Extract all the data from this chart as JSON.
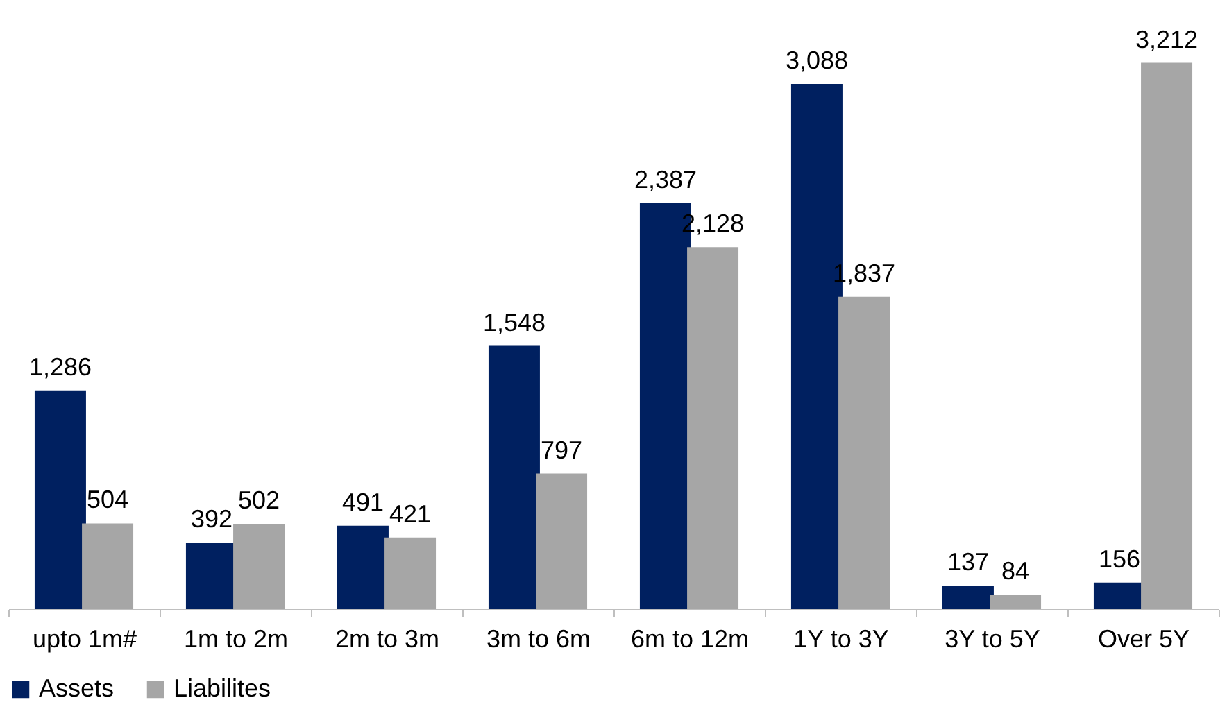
{
  "chart_data": {
    "type": "bar",
    "categories": [
      "upto 1m#",
      "1m to 2m",
      "2m to 3m",
      "3m to 6m",
      "6m to 12m",
      "1Y to 3Y",
      "3Y to 5Y",
      "Over 5Y"
    ],
    "series": [
      {
        "name": "Assets",
        "color": "#002060",
        "values": [
          1286,
          392,
          491,
          1548,
          2387,
          3088,
          137,
          156
        ],
        "value_labels": [
          "1,286",
          "392",
          "491",
          "1,548",
          "2,387",
          "3,088",
          "137",
          "156"
        ]
      },
      {
        "name": "Liabilites",
        "color": "#a6a6a6",
        "values": [
          504,
          502,
          421,
          797,
          2128,
          1837,
          84,
          3212
        ],
        "value_labels": [
          "504",
          "502",
          "421",
          "797",
          "2,128",
          "1,837",
          "84",
          "3,212"
        ]
      }
    ],
    "tick_labels": "x",
    "legend": "bottom",
    "grid": false
  }
}
